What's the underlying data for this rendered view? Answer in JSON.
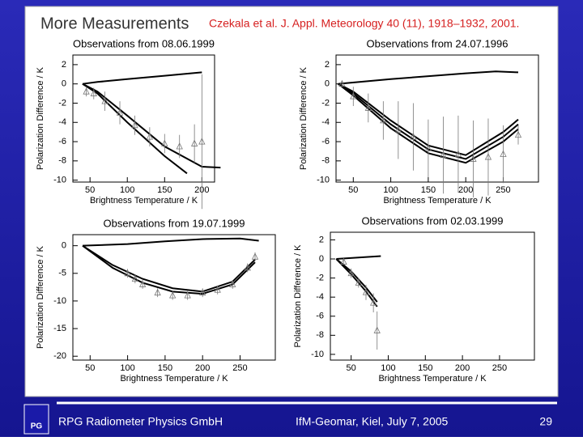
{
  "slide": {
    "title": "More Measurements",
    "citation": "Czekala et al. J. Appl. Meteorology 40 (11), 1918–1932, 2001.",
    "footer_logo": "PG",
    "footer_company": "RPG Radiometer Physics GmbH",
    "footer_event": "IfM-Geomar, Kiel, July 7, 2005",
    "footer_page": "29"
  },
  "chart_data": [
    {
      "type": "line",
      "title": "Observations from 08.06.1999",
      "xlabel": "Brightness Temperature / K",
      "ylabel": "Polarization Difference / K",
      "xlim": [
        27,
        217
      ],
      "ylim": [
        -10.2,
        3
      ],
      "xticks": [
        50,
        100,
        150,
        200
      ],
      "yticks": [
        2,
        0,
        -2,
        -4,
        -6,
        -8,
        -10
      ],
      "series": [
        {
          "color": "#000000",
          "x": [
            40,
            60,
            100,
            150,
            200
          ],
          "values": [
            0,
            0.2,
            0.5,
            0.85,
            1.2
          ]
        },
        {
          "color": "#000000",
          "x": [
            40,
            60,
            100,
            150,
            180
          ],
          "values": [
            0,
            -1,
            -4,
            -7.5,
            -9.3
          ]
        },
        {
          "color": "#000000",
          "x": [
            40,
            60,
            100,
            150,
            200,
            225
          ],
          "values": [
            0,
            -0.8,
            -3.3,
            -6.5,
            -8.6,
            -8.7
          ]
        },
        {
          "color": "#777777",
          "marker": "triangle",
          "x": [
            45,
            55,
            70,
            90,
            110,
            130,
            150,
            170,
            190,
            200
          ],
          "values": [
            -0.8,
            -1,
            -1.8,
            -3,
            -4.3,
            -5.5,
            -6.2,
            -6.5,
            -6.2,
            -6
          ],
          "errors": [
            0.5,
            0.6,
            1,
            1.2,
            1,
            1,
            1,
            1.2,
            2,
            7
          ]
        }
      ]
    },
    {
      "type": "line",
      "title": "Observations from 24.07.1996",
      "xlabel": "Brightness Temperature / K",
      "ylabel": "Polarization Difference / K",
      "xlim": [
        27,
        297
      ],
      "ylim": [
        -10.2,
        3
      ],
      "xticks": [
        50,
        100,
        150,
        200,
        250
      ],
      "yticks": [
        2,
        0,
        -2,
        -4,
        -6,
        -8,
        -10
      ],
      "series": [
        {
          "color": "#000000",
          "x": [
            30,
            100,
            200,
            240,
            270
          ],
          "values": [
            0,
            0.5,
            1.1,
            1.3,
            1.2
          ]
        },
        {
          "color": "#000000",
          "x": [
            30,
            50,
            100,
            150,
            200,
            250,
            270
          ],
          "values": [
            0,
            -1,
            -4.2,
            -6.8,
            -7.8,
            -5.5,
            -4.2
          ]
        },
        {
          "color": "#000000",
          "x": [
            30,
            50,
            100,
            150,
            200,
            250,
            270
          ],
          "values": [
            0,
            -1.2,
            -4.6,
            -7.2,
            -8.2,
            -6,
            -4.7
          ]
        },
        {
          "color": "#000000",
          "x": [
            30,
            50,
            100,
            150,
            200,
            250,
            270
          ],
          "values": [
            0,
            -0.8,
            -3.8,
            -6.4,
            -7.4,
            -5,
            -3.7
          ]
        },
        {
          "color": "#777777",
          "marker": "triangle",
          "x": [
            35,
            50,
            70,
            90,
            110,
            130,
            150,
            170,
            190,
            210,
            230,
            250,
            270
          ],
          "values": [
            0,
            -1.3,
            -2.5,
            -3.8,
            -4.8,
            -5.5,
            -6.7,
            -7.4,
            -7.3,
            -7.8,
            -7.6,
            -7.3,
            -5.3
          ],
          "errors": [
            0.3,
            1,
            1.5,
            2,
            3,
            3.5,
            3,
            4,
            4,
            4,
            4,
            3,
            1
          ]
        }
      ]
    },
    {
      "type": "line",
      "title": "Observations from 19.07.1999",
      "xlabel": "Brightness Temperature / K",
      "ylabel": "Polarization Difference / K",
      "xlim": [
        27,
        297
      ],
      "ylim": [
        -20.7,
        2
      ],
      "xticks": [
        50,
        100,
        150,
        200,
        250
      ],
      "yticks": [
        0,
        -5,
        -10,
        -15,
        -20
      ],
      "series": [
        {
          "color": "#000000",
          "x": [
            40,
            100,
            150,
            200,
            250,
            275
          ],
          "values": [
            0,
            0.3,
            0.8,
            1.2,
            1.3,
            0.9
          ]
        },
        {
          "color": "#000000",
          "x": [
            40,
            80,
            120,
            160,
            200,
            240,
            270
          ],
          "values": [
            0,
            -3.5,
            -6,
            -7.7,
            -8.3,
            -6.5,
            -2.5
          ]
        },
        {
          "color": "#000000",
          "x": [
            40,
            80,
            120,
            160,
            200,
            240,
            270
          ],
          "values": [
            0,
            -4,
            -6.7,
            -8.3,
            -8.7,
            -7,
            -3
          ]
        },
        {
          "color": "#777777",
          "marker": "triangle",
          "x": [
            100,
            110,
            120,
            140,
            160,
            180,
            200,
            220,
            240,
            260,
            270
          ],
          "values": [
            -5,
            -6,
            -7,
            -8.5,
            -9,
            -9,
            -8.5,
            -8,
            -7,
            -4,
            -2
          ],
          "errors": [
            0.8,
            0.8,
            0.8,
            0.8,
            0.8,
            0.8,
            0.8,
            0.8,
            0.8,
            0.8,
            0.8
          ]
        }
      ]
    },
    {
      "type": "line",
      "title": "Observations from 02.03.1999",
      "xlabel": "Brightness Temperature / K",
      "ylabel": "Polarization Difference / K",
      "xlim": [
        22,
        297
      ],
      "ylim": [
        -10.6,
        2.8
      ],
      "xticks": [
        50,
        100,
        150,
        200,
        250
      ],
      "yticks": [
        2,
        0,
        -2,
        -4,
        -6,
        -8,
        -10
      ],
      "series": [
        {
          "color": "#000000",
          "x": [
            30,
            90
          ],
          "values": [
            0,
            0.3
          ]
        },
        {
          "color": "#000000",
          "x": [
            30,
            50,
            70,
            85
          ],
          "values": [
            0,
            -1.3,
            -3,
            -4.5
          ]
        },
        {
          "color": "#000000",
          "x": [
            30,
            50,
            70,
            85
          ],
          "values": [
            0,
            -1.6,
            -3.4,
            -5
          ]
        },
        {
          "color": "#777777",
          "marker": "triangle",
          "x": [
            40,
            50,
            60,
            70,
            80,
            85
          ],
          "values": [
            -0.3,
            -1.5,
            -2.5,
            -3.5,
            -4.6,
            -7.5
          ],
          "errors": [
            0.3,
            0.5,
            0.5,
            0.8,
            1,
            2
          ]
        }
      ]
    }
  ]
}
